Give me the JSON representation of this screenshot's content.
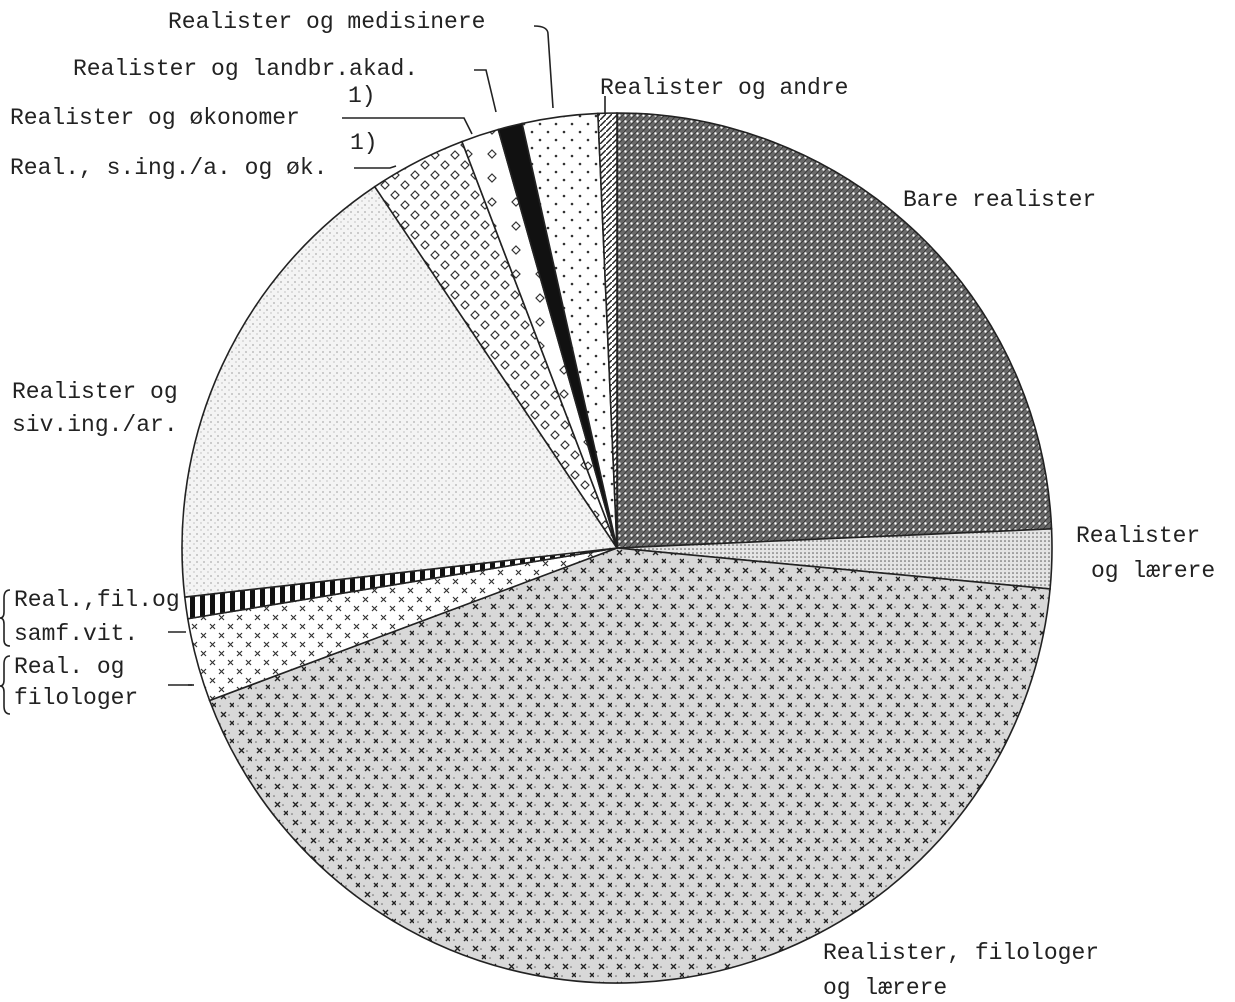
{
  "chart_data": {
    "type": "pie",
    "categories": [
      [
        "Bare realister"
      ],
      [
        "Realister",
        "og lærere"
      ],
      [
        "Realister, filologer",
        "og lærere"
      ],
      [
        "Real. og",
        "filologer"
      ],
      [
        "Real.,fil.og",
        "samf.vit."
      ],
      [
        "Realister og",
        "siv.ing./ar."
      ],
      [
        "Real., s.ing./a. og øk."
      ],
      [
        "Realister og økonomer"
      ],
      [
        "Realister og landbr.akad."
      ],
      [
        "Realister og medisinere"
      ],
      [
        "Realister og andre"
      ]
    ],
    "values": [
      24.3,
      2.2,
      42.8,
      3.1,
      0.8,
      17.4,
      3.6,
      1.4,
      0.9,
      2.8,
      0.7
    ],
    "annotations": [
      "1)",
      "1)"
    ]
  }
}
